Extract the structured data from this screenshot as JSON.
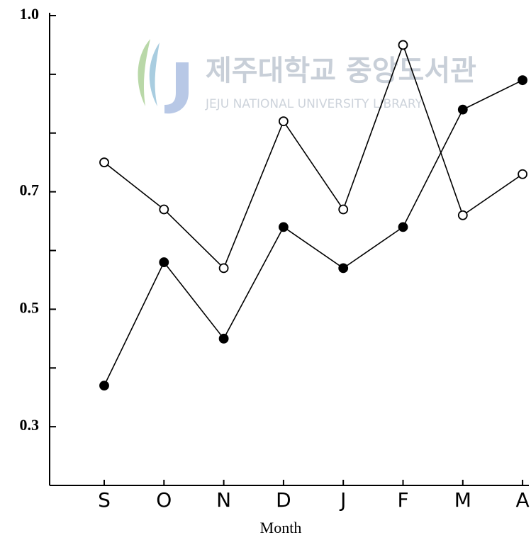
{
  "chart_data": {
    "type": "line",
    "watermark": {
      "title": "제주대학교 중앙도서관",
      "subtitle": "JEJU NATIONAL UNIVERSITY LIBRARY"
    },
    "x_label": "Month",
    "categories": [
      "S",
      "O",
      "N",
      "D",
      "J",
      "F",
      "M",
      "A"
    ],
    "series": [
      {
        "color": "#000000",
        "marker_fill": "#ffffff",
        "values": [
          0.75,
          0.67,
          0.57,
          0.82,
          0.67,
          0.95,
          0.66,
          0.73
        ]
      },
      {
        "color": "#000000",
        "marker_fill": "#000000",
        "values": [
          0.37,
          0.58,
          0.45,
          0.64,
          0.57,
          0.64,
          0.84,
          0.89
        ]
      }
    ],
    "ylim": [
      0.2,
      1.0
    ],
    "yticks": [
      0.3,
      0.5,
      0.7,
      {
        "value": 1.0,
        "label": "1.0"
      }
    ],
    "yminor": [
      0.4,
      0.6,
      0.8,
      0.9
    ],
    "grid": false
  }
}
